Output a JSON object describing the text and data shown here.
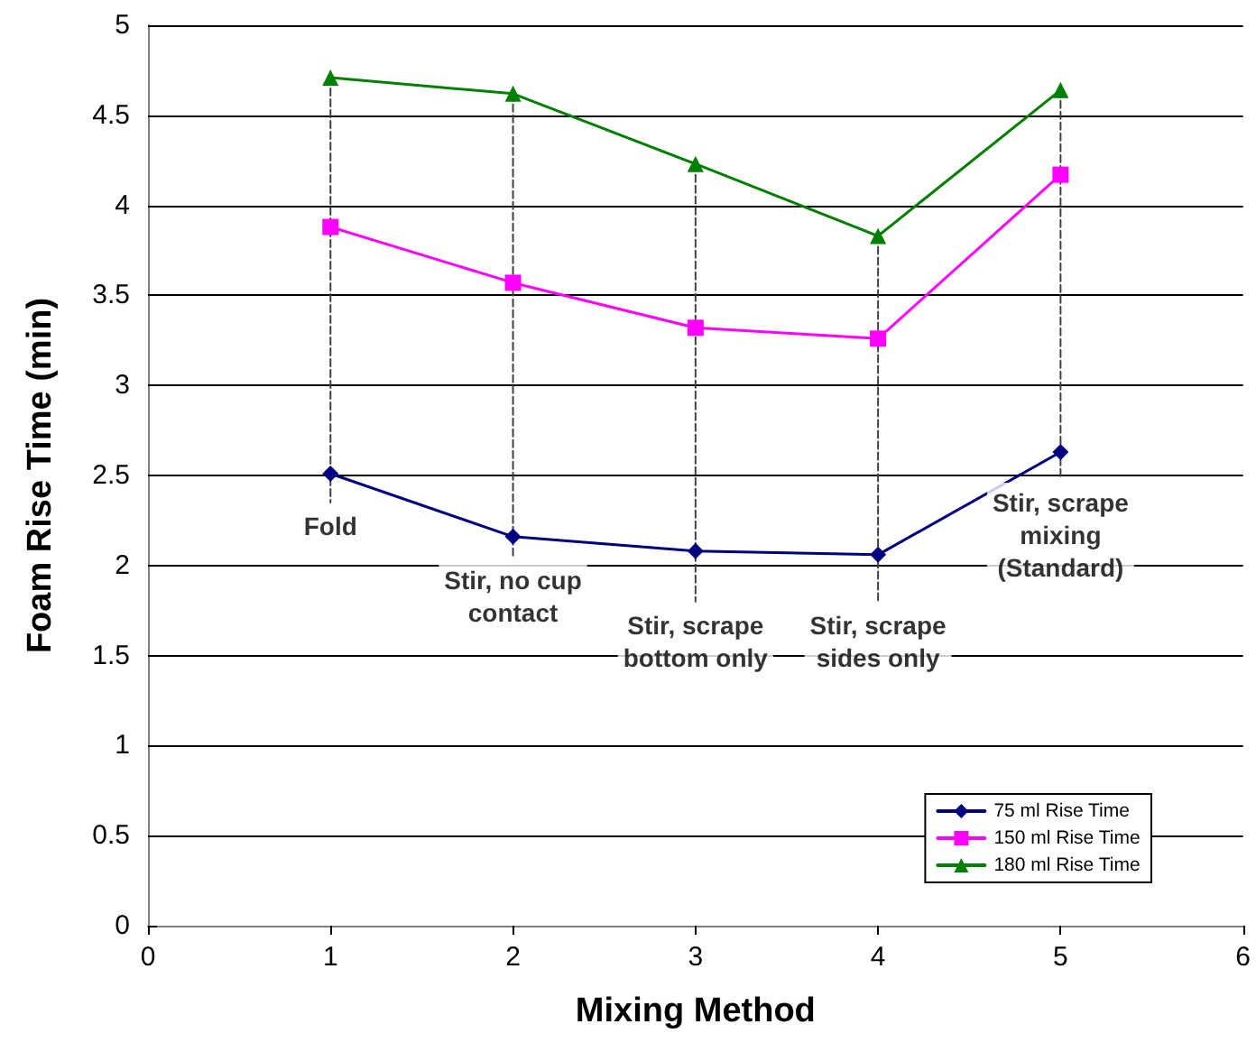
{
  "chart_data": {
    "type": "line",
    "xlabel": "Mixing Method",
    "ylabel": "Foam Rise Time (min)",
    "x": [
      1,
      2,
      3,
      4,
      5
    ],
    "series": [
      {
        "name": "75 ml Rise Time",
        "color": "#000080",
        "marker": "diamond",
        "values": [
          2.51,
          2.16,
          2.08,
          2.06,
          2.63
        ]
      },
      {
        "name": "150 ml Rise Time",
        "color": "#ff00ff",
        "marker": "square",
        "values": [
          3.88,
          3.57,
          3.32,
          3.26,
          4.17
        ]
      },
      {
        "name": "180 ml Rise Time",
        "color": "#008000",
        "marker": "triangle",
        "values": [
          4.71,
          4.62,
          4.23,
          3.83,
          4.64
        ]
      },
      {
        "color": "#404040",
        "marker": "none",
        "line_style": "dashed",
        "x": [
          1,
          1
        ],
        "values": [
          4.71,
          2.35
        ]
      },
      {
        "color": "#404040",
        "marker": "none",
        "line_style": "dashed",
        "x": [
          2,
          2
        ],
        "values": [
          4.62,
          2.05
        ]
      },
      {
        "color": "#404040",
        "marker": "none",
        "line_style": "dashed",
        "x": [
          3,
          3
        ],
        "values": [
          4.23,
          1.8
        ]
      },
      {
        "color": "#404040",
        "marker": "none",
        "line_style": "dashed",
        "x": [
          4,
          4
        ],
        "values": [
          3.83,
          1.8
        ]
      },
      {
        "color": "#404040",
        "marker": "none",
        "line_style": "dashed",
        "x": [
          5,
          5
        ],
        "values": [
          4.64,
          2.48
        ]
      }
    ],
    "annotations": [
      "Fold",
      "Stir, no cup\ncontact",
      "Stir, scrape\nbottom only",
      "Stir, scrape\nsides only",
      "Stir, scrape\nmixing\n(Standard)"
    ],
    "xlim": [
      0,
      6
    ],
    "xticks": [
      0,
      1,
      2,
      3,
      4,
      5,
      6
    ],
    "ylim": [
      0,
      5
    ],
    "yticks": [
      0,
      0.5,
      1,
      1.5,
      2,
      2.5,
      3,
      3.5,
      4,
      4.5,
      5
    ],
    "grid": "y",
    "legend": "bottom right",
    "line_style": "solid"
  }
}
